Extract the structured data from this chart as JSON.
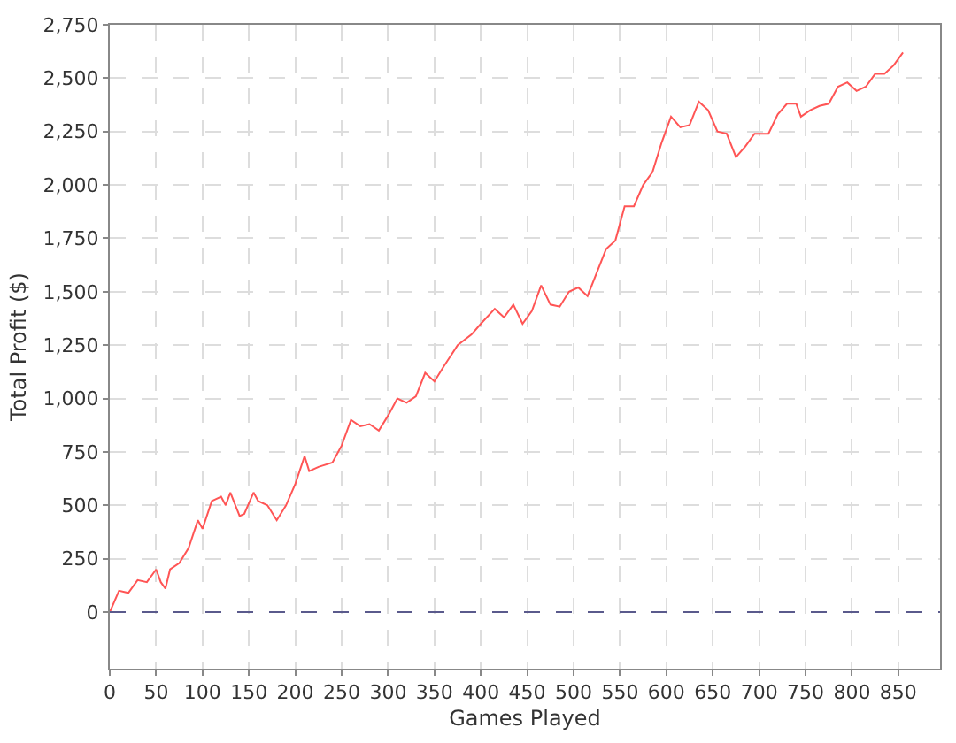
{
  "chart_data": {
    "type": "line",
    "xlabel": "Games Played",
    "ylabel": "Total Profit ($)",
    "xlim": [
      0,
      895
    ],
    "ylim": [
      -265,
      2750
    ],
    "xticks": [
      0,
      50,
      100,
      150,
      200,
      250,
      300,
      350,
      400,
      450,
      500,
      550,
      600,
      650,
      700,
      750,
      800,
      850
    ],
    "yticks": [
      0,
      {
        "value": 250,
        "label": "250"
      },
      {
        "value": 500,
        "label": "500"
      },
      {
        "value": 750,
        "label": "750"
      },
      {
        "value": 1000,
        "label": "1,000"
      },
      {
        "value": 1250,
        "label": "1,250"
      },
      {
        "value": 1500,
        "label": "1,500"
      },
      {
        "value": 1750,
        "label": "1,750"
      },
      {
        "value": 2000,
        "label": "2,000"
      },
      {
        "value": 2250,
        "label": "2,250"
      },
      {
        "value": 2500,
        "label": "2,500"
      },
      {
        "value": 2750,
        "label": "2,750"
      }
    ],
    "grid": true,
    "marker": "none",
    "line_style": "solid",
    "ref_lines": [
      {
        "axis": "y",
        "value": 0,
        "color": "#5a5a8c",
        "line_style": "dashed"
      }
    ],
    "series": [
      {
        "color": "#ff5555",
        "x": [
          0,
          10,
          20,
          30,
          40,
          50,
          55,
          60,
          65,
          75,
          85,
          95,
          100,
          110,
          120,
          125,
          130,
          140,
          145,
          155,
          160,
          170,
          180,
          190,
          200,
          210,
          215,
          225,
          240,
          250,
          260,
          270,
          280,
          290,
          300,
          310,
          320,
          330,
          340,
          350,
          360,
          375,
          390,
          400,
          415,
          425,
          435,
          445,
          455,
          465,
          475,
          485,
          495,
          505,
          515,
          525,
          535,
          545,
          555,
          565,
          575,
          585,
          595,
          605,
          615,
          625,
          635,
          645,
          655,
          665,
          675,
          685,
          695,
          710,
          720,
          730,
          740,
          745,
          755,
          765,
          775,
          785,
          795,
          805,
          815,
          825,
          835,
          845,
          855
        ],
        "values": [
          0,
          100,
          90,
          150,
          140,
          200,
          140,
          110,
          200,
          230,
          300,
          430,
          390,
          520,
          540,
          500,
          560,
          450,
          460,
          560,
          520,
          500,
          430,
          500,
          600,
          730,
          660,
          680,
          700,
          780,
          900,
          870,
          880,
          850,
          920,
          1000,
          980,
          1010,
          1120,
          1080,
          1150,
          1250,
          1300,
          1350,
          1420,
          1380,
          1440,
          1350,
          1410,
          1530,
          1440,
          1430,
          1500,
          1520,
          1480,
          1590,
          1700,
          1740,
          1900,
          1900,
          2000,
          2060,
          2200,
          2320,
          2270,
          2280,
          2390,
          2350,
          2250,
          2240,
          2130,
          2180,
          2240,
          2240,
          2330,
          2380,
          2380,
          2320,
          2350,
          2370,
          2380,
          2460,
          2480,
          2440,
          2460,
          2520,
          2520,
          2560,
          2620
        ]
      }
    ]
  }
}
